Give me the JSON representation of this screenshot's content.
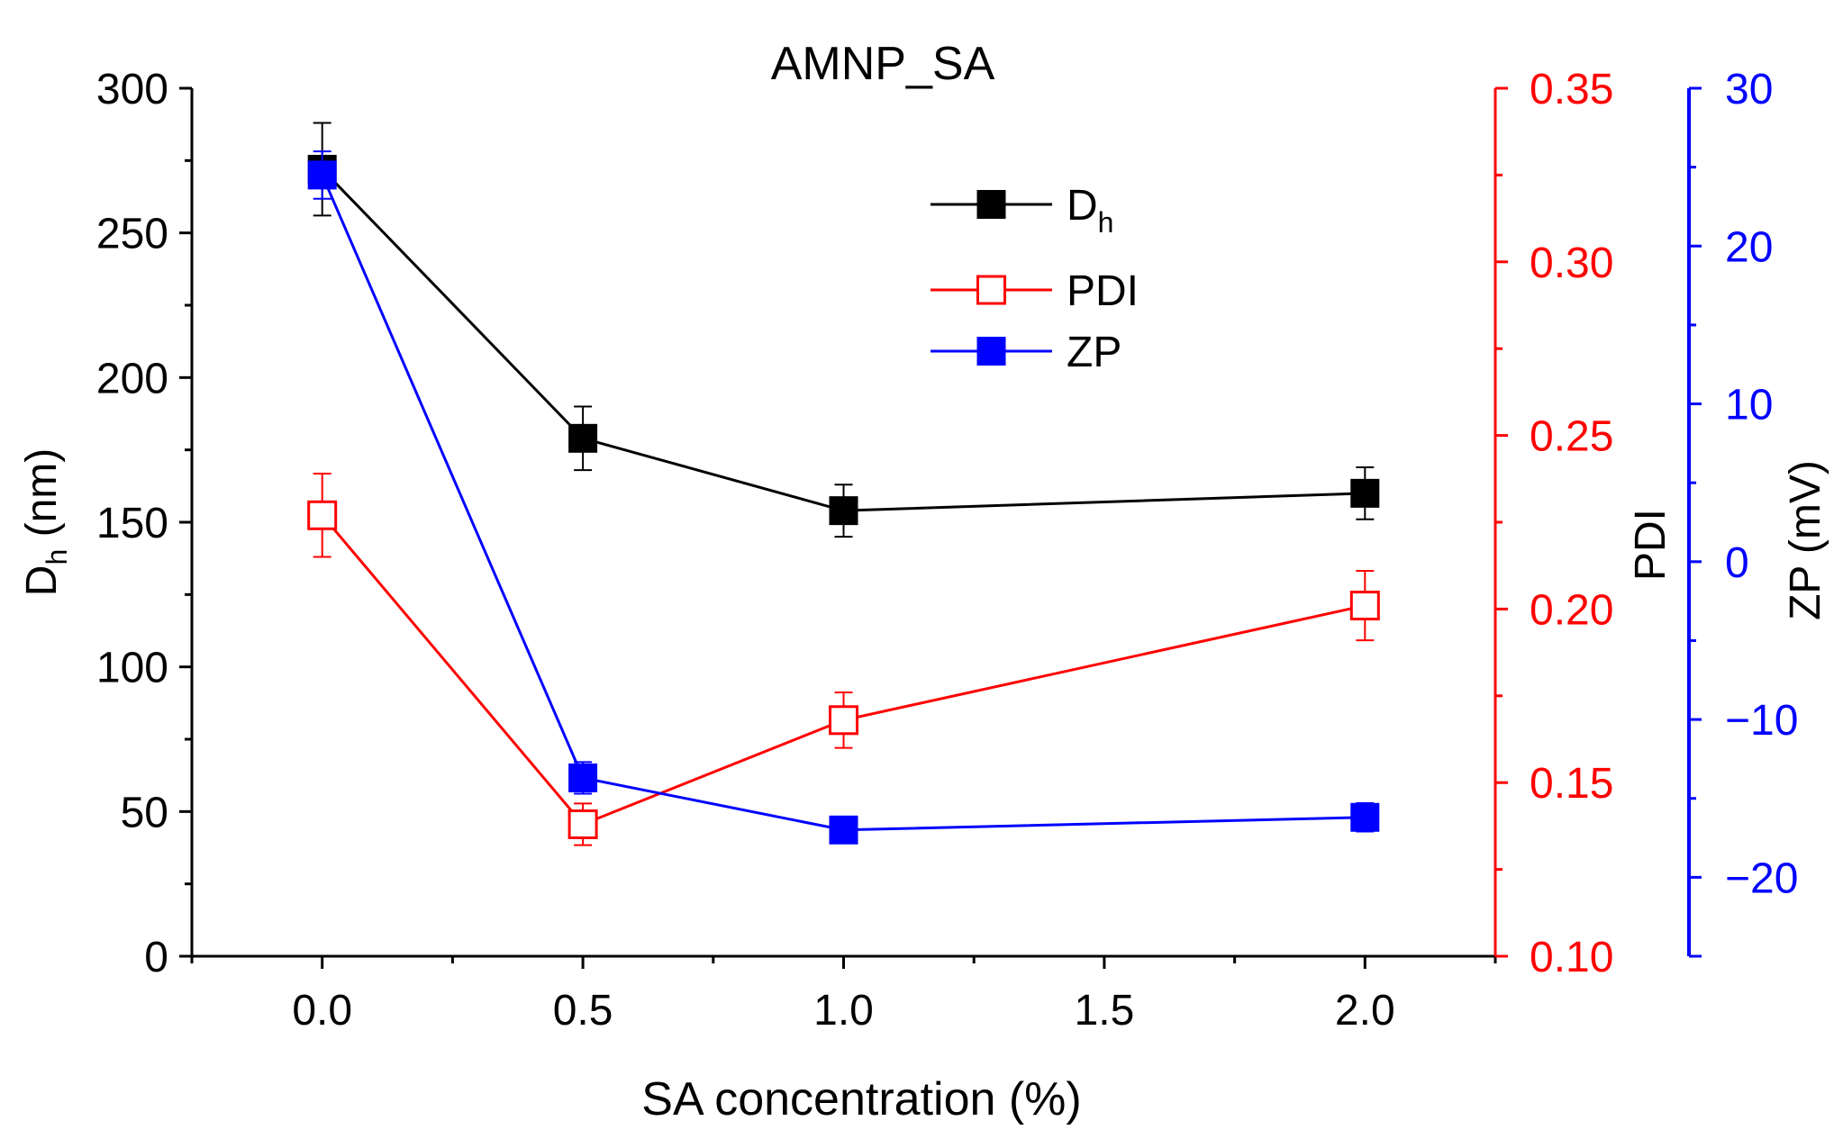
{
  "chart_data": {
    "type": "line",
    "title": "AMNP_SA",
    "xlabel": "SA concentration (%)",
    "xlim": [
      -0.25,
      2.25
    ],
    "x_ticks": [
      0.0,
      0.5,
      1.0,
      1.5,
      2.0
    ],
    "x_tick_labels": [
      "0.0",
      "0.5",
      "1.0",
      "1.5",
      "2.0"
    ],
    "axes": {
      "left": {
        "label_main": "D",
        "label_sub": "h",
        "label_unit": " (nm)",
        "ylim": [
          0,
          300
        ],
        "ticks": [
          0,
          50,
          100,
          150,
          200,
          250,
          300
        ],
        "tick_labels": [
          "0",
          "50",
          "100",
          "150",
          "200",
          "250",
          "300"
        ],
        "color": "#000000"
      },
      "right1": {
        "label": "PDI",
        "ylim": [
          0.1,
          0.35
        ],
        "ticks": [
          0.1,
          0.15,
          0.2,
          0.25,
          0.3,
          0.35
        ],
        "tick_labels": [
          "0.10",
          "0.15",
          "0.20",
          "0.25",
          "0.30",
          "0.35"
        ],
        "color": "#ff0000"
      },
      "right2": {
        "label": "ZP (mV)",
        "ylim": [
          -25,
          30
        ],
        "ticks": [
          -20,
          -10,
          0,
          10,
          20,
          30
        ],
        "tick_labels": [
          "−20",
          "−10",
          "0",
          "10",
          "20",
          "30"
        ],
        "color": "#0000ff"
      }
    },
    "series": [
      {
        "name": "Dh",
        "legend_main": "D",
        "legend_sub": "h",
        "axis": "left",
        "color": "#000000",
        "marker": "filled-square",
        "x": [
          0.0,
          0.5,
          1.0,
          2.0
        ],
        "y": [
          272,
          179,
          154,
          160
        ],
        "err": [
          16,
          11,
          9,
          9
        ]
      },
      {
        "name": "PDI",
        "legend_main": "PDI",
        "legend_sub": "",
        "axis": "right1",
        "color": "#ff0000",
        "marker": "open-square",
        "x": [
          0.0,
          0.5,
          1.0,
          2.0
        ],
        "y": [
          0.227,
          0.138,
          0.168,
          0.201
        ],
        "err": [
          0.012,
          0.006,
          0.008,
          0.01
        ]
      },
      {
        "name": "ZP",
        "legend_main": "ZP",
        "legend_sub": "",
        "axis": "right2",
        "color": "#0000ff",
        "marker": "filled-square",
        "x": [
          0.0,
          0.5,
          1.0,
          2.0
        ],
        "y": [
          24.5,
          -13.7,
          -17.0,
          -16.2
        ],
        "err": [
          1.5,
          1.0,
          0.7,
          0.9
        ]
      }
    ]
  }
}
